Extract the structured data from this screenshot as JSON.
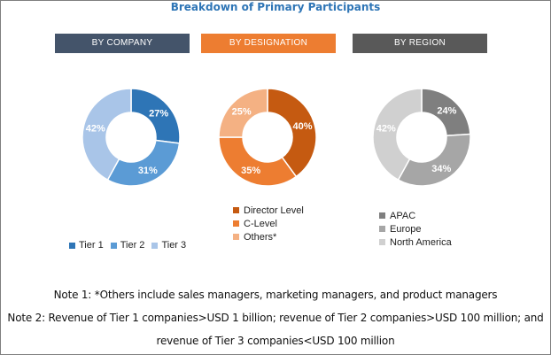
{
  "title": "Breakdown of Primary Participants",
  "chart_data": [
    {
      "type": "pie",
      "variant": "donut",
      "heading": "BY COMPANY",
      "heading_color": "#44546a",
      "categories": [
        "Tier 1",
        "Tier 2",
        "Tier 3"
      ],
      "values": [
        27,
        31,
        42
      ],
      "labels": [
        "27%",
        "31%",
        "42%"
      ],
      "colors": [
        "#2e75b6",
        "#5b9bd5",
        "#a9c5e8"
      ],
      "legend_placement": "bottom"
    },
    {
      "type": "pie",
      "variant": "donut",
      "heading": "BY DESIGNATION",
      "heading_color": "#ed7d31",
      "categories": [
        "Director Level",
        "C-Level",
        "Others*"
      ],
      "values": [
        40,
        35,
        25
      ],
      "labels": [
        "40%",
        "35%",
        "25%"
      ],
      "colors": [
        "#c55a11",
        "#ed7d31",
        "#f4b183"
      ],
      "legend_placement": "bottom"
    },
    {
      "type": "pie",
      "variant": "donut",
      "heading": "BY REGION",
      "heading_color": "#595959",
      "categories": [
        "APAC",
        "Europe",
        "North America"
      ],
      "values": [
        24,
        34,
        42
      ],
      "labels": [
        "24%",
        "34%",
        "42%"
      ],
      "colors": [
        "#7f7f7f",
        "#a6a6a6",
        "#d0d0d0"
      ],
      "legend_placement": "bottom"
    }
  ],
  "notes": {
    "note1": "Note 1: *Others include sales managers, marketing managers, and product managers",
    "note2_line1": "Note 2: Revenue of Tier 1 companies>USD 1 billion; revenue of Tier 2 companies>USD 100 million; and",
    "note2_line2": "revenue of Tier 3 companies<USD 100 million"
  }
}
